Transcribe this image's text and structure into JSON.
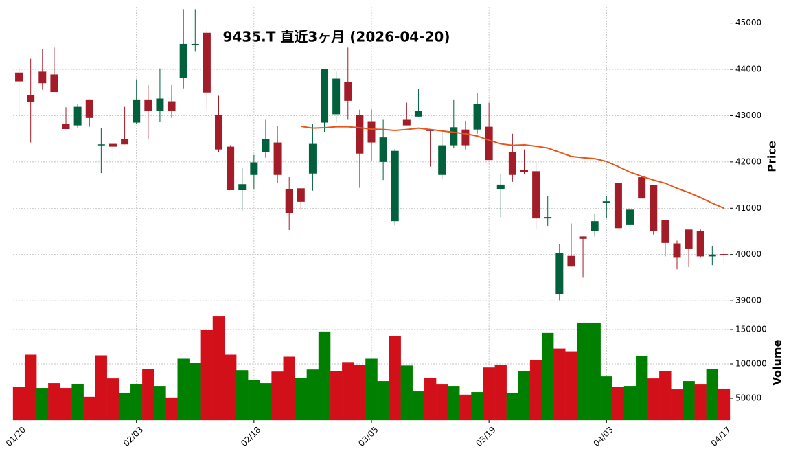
{
  "chart_data": {
    "type": "candlestick",
    "title": "9435.T  直近3ヶ月  (2026-04-20)",
    "categories": [
      "01/20",
      null,
      null,
      null,
      null,
      null,
      null,
      null,
      null,
      null,
      "02/03",
      null,
      null,
      null,
      null,
      null,
      null,
      null,
      null,
      null,
      "02/18",
      null,
      null,
      null,
      null,
      null,
      null,
      null,
      null,
      null,
      "03/05",
      null,
      null,
      null,
      null,
      null,
      null,
      null,
      null,
      null,
      "03/19",
      null,
      null,
      null,
      null,
      null,
      null,
      null,
      null,
      null,
      "04/03",
      null,
      null,
      null,
      null,
      null,
      null,
      null,
      null,
      null,
      "04/17"
    ],
    "open": [
      43930,
      43440,
      43950,
      43890,
      42820,
      42790,
      43350,
      42360,
      42390,
      42500,
      42850,
      43350,
      43110,
      43310,
      43810,
      44520,
      44790,
      43020,
      42330,
      41390,
      41720,
      42210,
      42420,
      41420,
      41430,
      41750,
      42850,
      43030,
      43720,
      43010,
      42880,
      42000,
      40720,
      42910,
      42980,
      42690,
      41720,
      42360,
      42700,
      42700,
      42760,
      41410,
      42210,
      41820,
      41800,
      40780,
      39150,
      39970,
      40390,
      40510,
      41120,
      41550,
      40650,
      41670,
      41500,
      40740,
      40240,
      40540,
      40510,
      39960,
      40010
    ],
    "high": [
      44060,
      44230,
      44440,
      44470,
      43180,
      43250,
      43350,
      42730,
      42590,
      43190,
      43780,
      43660,
      44020,
      43660,
      45300,
      45300,
      44850,
      43430,
      42360,
      41870,
      42150,
      42910,
      42770,
      41670,
      41430,
      42820,
      44000,
      43950,
      44470,
      43130,
      43130,
      42910,
      42280,
      43280,
      43570,
      42690,
      42690,
      43350,
      42890,
      43490,
      43280,
      41750,
      42610,
      42270,
      42010,
      41260,
      40220,
      40670,
      40390,
      40870,
      41270,
      41550,
      40970,
      41700,
      41500,
      40740,
      40300,
      40540,
      40540,
      40190,
      40150
    ],
    "low": [
      42980,
      42420,
      43560,
      43510,
      42710,
      42730,
      42760,
      41760,
      41790,
      42380,
      42820,
      42500,
      42860,
      42950,
      43590,
      44380,
      43130,
      42210,
      41390,
      40950,
      41400,
      42090,
      41550,
      40530,
      40960,
      41380,
      42650,
      42850,
      42910,
      41440,
      42030,
      41610,
      40630,
      42790,
      42980,
      41900,
      41640,
      42310,
      42270,
      42610,
      42040,
      40810,
      41570,
      41730,
      40560,
      40620,
      39010,
      39740,
      39500,
      40390,
      40780,
      40570,
      40450,
      41210,
      40430,
      39960,
      39680,
      39730,
      39930,
      39770,
      39800
    ],
    "close": [
      43740,
      43300,
      43700,
      43510,
      42710,
      43190,
      42950,
      42380,
      42330,
      42380,
      43350,
      43110,
      43370,
      43110,
      44550,
      44550,
      43500,
      42270,
      41390,
      41520,
      41990,
      42500,
      41720,
      40900,
      41140,
      42390,
      44000,
      43800,
      43320,
      42180,
      42420,
      42530,
      42240,
      42790,
      43100,
      42680,
      42360,
      42750,
      42360,
      43250,
      42040,
      41510,
      41720,
      41790,
      40780,
      40810,
      40030,
      39740,
      40340,
      40720,
      41150,
      40570,
      40970,
      41210,
      40500,
      40250,
      39930,
      40130,
      39960,
      40000,
      39990
    ],
    "up_color": "#00613c",
    "down_color": "#a31d28",
    "ylim": [
      38750,
      45350
    ],
    "yticks": [
      39000,
      40000,
      41000,
      42000,
      43000,
      44000,
      45000
    ],
    "ylabel": "Price",
    "grid": true,
    "moving_average": {
      "color": "#e8561a",
      "values": [
        null,
        null,
        null,
        null,
        null,
        null,
        null,
        null,
        null,
        null,
        null,
        null,
        null,
        null,
        null,
        null,
        null,
        null,
        null,
        null,
        null,
        null,
        null,
        null,
        42770,
        42730,
        42740,
        42760,
        42760,
        42740,
        42710,
        42700,
        42680,
        42700,
        42730,
        42700,
        42670,
        42640,
        42610,
        42560,
        42470,
        42390,
        42360,
        42370,
        42340,
        42300,
        42210,
        42120,
        42090,
        42070,
        42010,
        41900,
        41780,
        41690,
        41610,
        41540,
        41430,
        41340,
        41230,
        41110,
        41000
      ]
    },
    "volume": {
      "values": [
        66800,
        113400,
        64900,
        71800,
        64900,
        70800,
        52000,
        112400,
        78700,
        57900,
        70800,
        92600,
        67800,
        51000,
        107400,
        101500,
        149000,
        169800,
        113400,
        90600,
        76700,
        71800,
        88600,
        110400,
        79700,
        91600,
        147000,
        89600,
        102500,
        98500,
        107400,
        74800,
        140100,
        97500,
        59900,
        79700,
        69800,
        67800,
        55000,
        58900,
        94600,
        98500,
        57900,
        89600,
        105400,
        145000,
        122300,
        118300,
        159900,
        159900,
        81700,
        66800,
        67800,
        111400,
        78700,
        89600,
        62900,
        74800,
        69800,
        92600,
        63900
      ],
      "up_color": "#007f00",
      "down_color": "#d1101a",
      "ylim": [
        18000,
        173000
      ],
      "yticks": [
        50000,
        100000,
        150000
      ],
      "ylabel": "Volume"
    }
  }
}
